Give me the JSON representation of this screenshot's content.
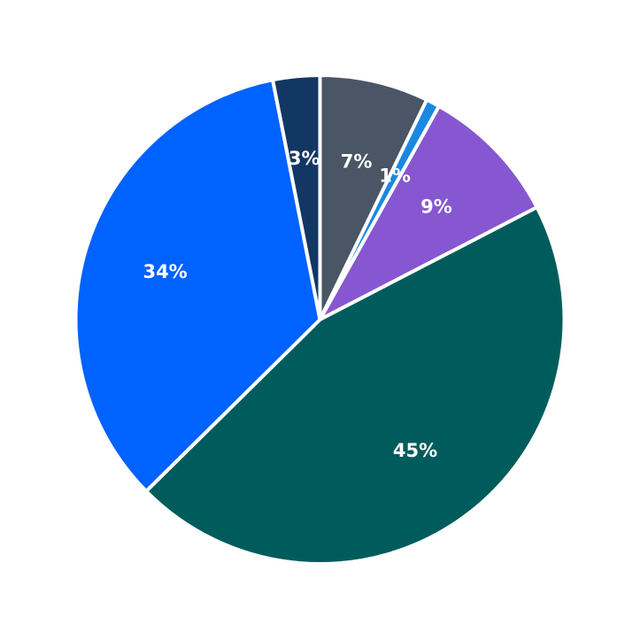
{
  "chart_data": {
    "type": "pie",
    "start": "top",
    "direction": "clockwise",
    "slices": [
      {
        "label": "7%",
        "value": 7.2,
        "color": "#4a5565"
      },
      {
        "label": "1%",
        "value": 0.9,
        "color": "#1a88e0"
      },
      {
        "label": "9%",
        "value": 9.3,
        "color": "#8657d0"
      },
      {
        "label": "45%",
        "value": 45.2,
        "color": "#005c5c"
      },
      {
        "label": "34%",
        "value": 34.3,
        "color": "#0062ff"
      },
      {
        "label": "3%",
        "value": 3.1,
        "color": "#133763"
      }
    ]
  }
}
